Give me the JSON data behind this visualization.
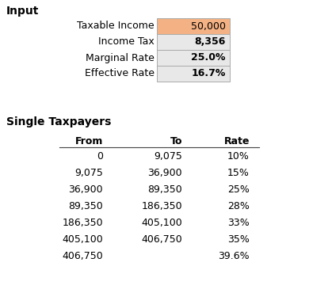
{
  "title_input": "Input",
  "title_taxpayers": "Single Taxpayers",
  "input_labels": [
    "Taxable Income",
    "Income Tax",
    "Marginal Rate",
    "Effective Rate"
  ],
  "input_values": [
    "50,000",
    "8,356",
    "25.0%",
    "16.7%"
  ],
  "input_bg_colors": [
    "#F4B183",
    "#E8E8E8",
    "#E8E8E8",
    "#E8E8E8"
  ],
  "table_headers": [
    "From",
    "To",
    "Rate"
  ],
  "table_from": [
    "0",
    "9,075",
    "36,900",
    "89,350",
    "186,350",
    "405,100",
    "406,750"
  ],
  "table_to": [
    "9,075",
    "36,900",
    "89,350",
    "186,350",
    "405,100",
    "406,750",
    ""
  ],
  "table_rate": [
    "10%",
    "15%",
    "25%",
    "28%",
    "33%",
    "35%",
    "39.6%"
  ],
  "bg_color": "#FFFFFF",
  "border_color": "#AAAAAA",
  "title_font_size": 10,
  "label_font_size": 9,
  "value_font_size": 9,
  "table_header_font_size": 9,
  "table_cell_font_size": 9
}
